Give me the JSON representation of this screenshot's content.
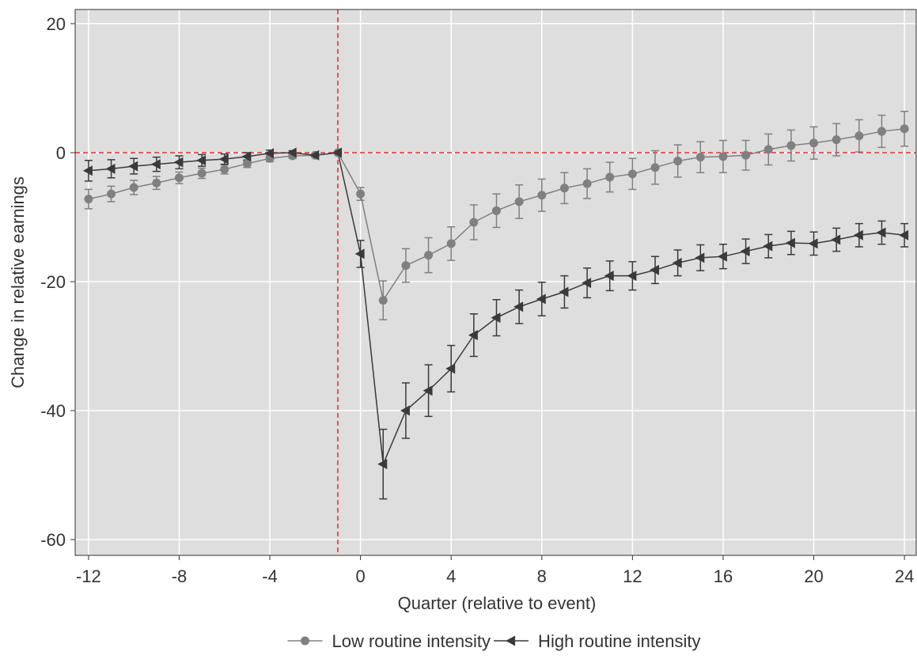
{
  "chart_data": {
    "type": "line",
    "x_label": "Quarter (relative to event)",
    "y_label": "Change in relative earnings",
    "x": [
      -12,
      -11,
      -10,
      -9,
      -8,
      -7,
      -6,
      -5,
      -4,
      -3,
      -2,
      -1,
      0,
      1,
      2,
      3,
      4,
      5,
      6,
      7,
      8,
      9,
      10,
      11,
      12,
      13,
      14,
      15,
      16,
      17,
      18,
      19,
      20,
      21,
      22,
      23,
      24
    ],
    "series": [
      {
        "name": "Low routine intensity",
        "color": "#808080",
        "marker": "circle",
        "values": [
          -7.2,
          -6.4,
          -5.4,
          -4.7,
          -3.9,
          -3.2,
          -2.6,
          -1.7,
          -0.9,
          -0.5,
          -0.4,
          0,
          -6.4,
          -22.9,
          -17.5,
          -15.9,
          -14.1,
          -10.8,
          -9.0,
          -7.6,
          -6.6,
          -5.5,
          -4.8,
          -3.8,
          -3.3,
          -2.3,
          -1.3,
          -0.7,
          -0.6,
          -0.4,
          0.5,
          1.1,
          1.5,
          2.0,
          2.6,
          3.3,
          3.7
        ],
        "errors": [
          1.5,
          1.2,
          1.1,
          1.0,
          0.9,
          0.8,
          0.7,
          0.6,
          0.5,
          0.4,
          0.3,
          0,
          1.0,
          3.0,
          2.6,
          2.7,
          2.6,
          2.7,
          2.6,
          2.6,
          2.5,
          2.4,
          2.3,
          2.3,
          2.4,
          2.6,
          2.5,
          2.4,
          2.5,
          2.3,
          2.4,
          2.4,
          2.5,
          2.5,
          2.5,
          2.5,
          2.7
        ]
      },
      {
        "name": "High routine intensity",
        "color": "#3a3a3a",
        "marker": "triangle-left",
        "values": [
          -2.8,
          -2.5,
          -2.1,
          -1.8,
          -1.5,
          -1.2,
          -1.0,
          -0.6,
          -0.1,
          0,
          -0.4,
          0,
          -15.7,
          -48.3,
          -40.0,
          -36.9,
          -33.5,
          -28.3,
          -25.6,
          -23.9,
          -22.7,
          -21.6,
          -20.2,
          -19.1,
          -19.1,
          -18.2,
          -17.1,
          -16.3,
          -16.1,
          -15.3,
          -14.5,
          -14.0,
          -14.1,
          -13.5,
          -12.8,
          -12.4,
          -12.8
        ],
        "errors": [
          1.6,
          1.4,
          1.2,
          1.1,
          1.0,
          0.9,
          0.8,
          0.6,
          0.5,
          0.3,
          0.2,
          0,
          2.1,
          5.4,
          4.3,
          4.0,
          3.6,
          3.3,
          2.8,
          2.6,
          2.6,
          2.5,
          2.3,
          2.3,
          2.2,
          2.1,
          2.0,
          2.0,
          1.9,
          1.9,
          1.8,
          1.8,
          1.8,
          1.8,
          1.8,
          1.8,
          1.8
        ]
      }
    ],
    "xlim": [
      -12.59,
      24.52
    ],
    "ylim": [
      -62.45,
      22.2
    ],
    "xticks": [
      -12,
      -8,
      -4,
      0,
      4,
      8,
      12,
      16,
      20,
      24
    ],
    "yticks": [
      20,
      0,
      -20,
      -40,
      -60
    ],
    "grid": true,
    "vline": -1,
    "hline": 0,
    "reference_color": "#e8282b",
    "legend": "bottom"
  }
}
